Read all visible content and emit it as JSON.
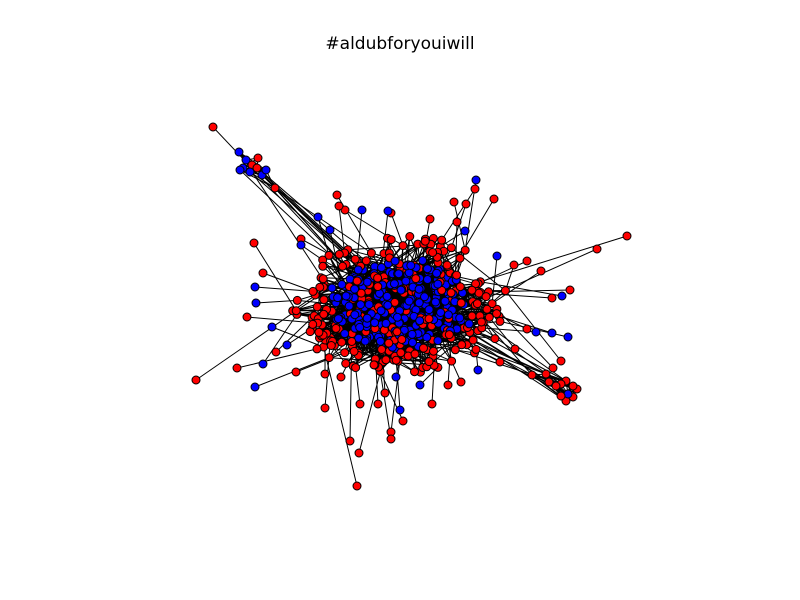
{
  "figure": {
    "title": "#aldubforyouiwill"
  },
  "colors": {
    "background": "#ffffff",
    "edge": "#000000",
    "node_stroke": "#000000",
    "group_a": "#ff0000",
    "group_b": "#0000ff"
  },
  "chart_data": {
    "type": "network-graph",
    "title": "#aldubforyouiwill",
    "layout": "force-directed",
    "axes": "hidden",
    "groups": [
      "red",
      "blue"
    ],
    "node_colors": {
      "red": "#ff0000",
      "blue": "#0000ff"
    },
    "dense_core_counts": {
      "red": 260,
      "blue": 240
    }
  }
}
